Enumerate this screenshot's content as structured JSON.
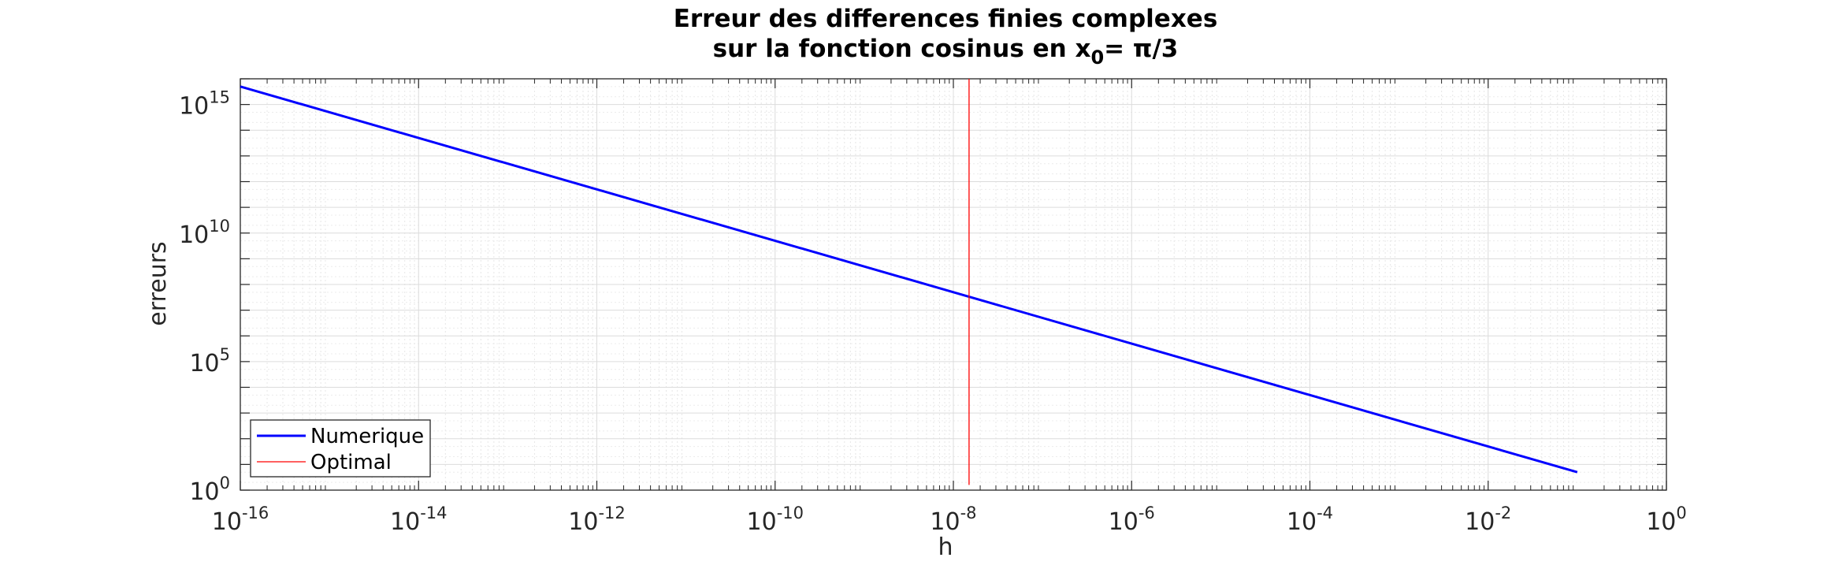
{
  "chart_data": {
    "type": "line",
    "title_line1": "Erreur des differences finies complexes",
    "title_line2_prefix": "sur la fonction cosinus en x",
    "title_line2_subscript": "0",
    "title_line2_suffix": "= π/3",
    "xlabel": "h",
    "ylabel": "erreurs",
    "x_scale": "log",
    "y_scale": "log",
    "xlim": [
      1e-16,
      1
    ],
    "ylim": [
      1,
      1e+16
    ],
    "x_ticks": [
      {
        "value": 1e-16,
        "base": "10",
        "exp": "-16"
      },
      {
        "value": 1e-14,
        "base": "10",
        "exp": "-14"
      },
      {
        "value": 1e-12,
        "base": "10",
        "exp": "-12"
      },
      {
        "value": 1e-10,
        "base": "10",
        "exp": "-10"
      },
      {
        "value": 1e-08,
        "base": "10",
        "exp": "-8"
      },
      {
        "value": 1e-06,
        "base": "10",
        "exp": "-6"
      },
      {
        "value": 0.0001,
        "base": "10",
        "exp": "-4"
      },
      {
        "value": 0.01,
        "base": "10",
        "exp": "-2"
      },
      {
        "value": 1,
        "base": "10",
        "exp": "0"
      }
    ],
    "y_ticks": [
      {
        "value": 1,
        "base": "10",
        "exp": "0"
      },
      {
        "value": 100000.0,
        "base": "10",
        "exp": "5"
      },
      {
        "value": 10000000000.0,
        "base": "10",
        "exp": "10"
      },
      {
        "value": 1000000000000000.0,
        "base": "10",
        "exp": "15"
      }
    ],
    "grid": true,
    "minor_grid": true,
    "legend_position": "bottom-left",
    "series": [
      {
        "name": "Numerique",
        "color": "#0000ff",
        "style": "solid",
        "x": [
          1e-16,
          1e-14,
          1e-12,
          1e-10,
          1e-08,
          1e-06,
          0.0001,
          0.01,
          0.1
        ],
        "y": [
          5000000000000000.0,
          50000000000000.0,
          500000000000.0,
          5000000000.0,
          50000000.0,
          500000.0,
          5000.0,
          50,
          5
        ]
      },
      {
        "name": "Optimal",
        "color": "#ff0000",
        "style": "solid",
        "x": [
          1.5e-08,
          1.5e-08
        ],
        "y": [
          1.6,
          1e+16
        ]
      }
    ]
  }
}
